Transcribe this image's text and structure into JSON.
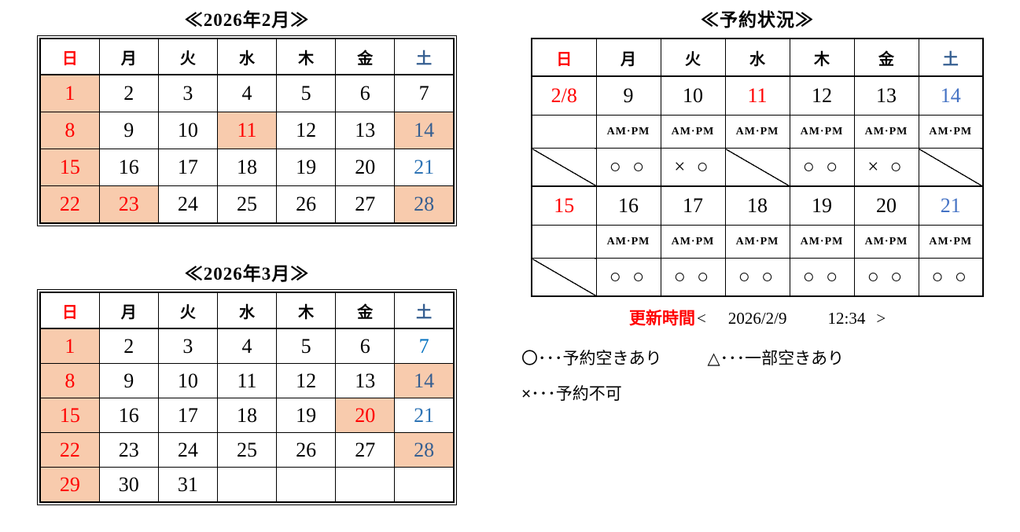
{
  "colors": {
    "red": "#ff0000",
    "blue_dark": "#365f91",
    "blue_medium": "#2e74b5",
    "blue_bright": "#0070c0",
    "blue_royal": "#4472c4",
    "highlight": "#f8cbad"
  },
  "calendars": [
    {
      "title": "≪2026年2月≫",
      "day_headers": [
        {
          "label": "日",
          "color": "red"
        },
        {
          "label": "月",
          "color": "black"
        },
        {
          "label": "火",
          "color": "black"
        },
        {
          "label": "水",
          "color": "black"
        },
        {
          "label": "木",
          "color": "black"
        },
        {
          "label": "金",
          "color": "black"
        },
        {
          "label": "土",
          "color": "blue-dark"
        }
      ],
      "weeks": [
        [
          {
            "text": "1",
            "color": "red",
            "highlight": true
          },
          {
            "text": "2"
          },
          {
            "text": "3"
          },
          {
            "text": "4"
          },
          {
            "text": "5"
          },
          {
            "text": "6"
          },
          {
            "text": "7"
          }
        ],
        [
          {
            "text": "8",
            "color": "red",
            "highlight": true
          },
          {
            "text": "9"
          },
          {
            "text": "10"
          },
          {
            "text": "11",
            "color": "red",
            "highlight": true
          },
          {
            "text": "12"
          },
          {
            "text": "13"
          },
          {
            "text": "14",
            "color": "blue-dark",
            "highlight": true
          }
        ],
        [
          {
            "text": "15",
            "color": "red",
            "highlight": true
          },
          {
            "text": "16"
          },
          {
            "text": "17"
          },
          {
            "text": "18"
          },
          {
            "text": "19"
          },
          {
            "text": "20"
          },
          {
            "text": "21",
            "color": "blue-medium"
          }
        ],
        [
          {
            "text": "22",
            "color": "red",
            "highlight": true
          },
          {
            "text": "23",
            "color": "red",
            "highlight": true
          },
          {
            "text": "24"
          },
          {
            "text": "25"
          },
          {
            "text": "26"
          },
          {
            "text": "27"
          },
          {
            "text": "28",
            "color": "blue-dark",
            "highlight": true
          }
        ]
      ]
    },
    {
      "title": "≪2026年3月≫",
      "day_headers": [
        {
          "label": "日",
          "color": "red"
        },
        {
          "label": "月",
          "color": "black"
        },
        {
          "label": "火",
          "color": "black"
        },
        {
          "label": "水",
          "color": "black"
        },
        {
          "label": "木",
          "color": "black"
        },
        {
          "label": "金",
          "color": "black"
        },
        {
          "label": "土",
          "color": "blue-dark"
        }
      ],
      "weeks": [
        [
          {
            "text": "1",
            "color": "red",
            "highlight": true
          },
          {
            "text": "2"
          },
          {
            "text": "3"
          },
          {
            "text": "4"
          },
          {
            "text": "5"
          },
          {
            "text": "6"
          },
          {
            "text": "7",
            "color": "blue-bright"
          }
        ],
        [
          {
            "text": "8",
            "color": "red",
            "highlight": true
          },
          {
            "text": "9"
          },
          {
            "text": "10"
          },
          {
            "text": "11"
          },
          {
            "text": "12"
          },
          {
            "text": "13"
          },
          {
            "text": "14",
            "color": "blue-dark",
            "highlight": true
          }
        ],
        [
          {
            "text": "15",
            "color": "red",
            "highlight": true
          },
          {
            "text": "16"
          },
          {
            "text": "17"
          },
          {
            "text": "18"
          },
          {
            "text": "19"
          },
          {
            "text": "20",
            "color": "red",
            "highlight": true
          },
          {
            "text": "21",
            "color": "blue-medium"
          }
        ],
        [
          {
            "text": "22",
            "color": "red",
            "highlight": true
          },
          {
            "text": "23"
          },
          {
            "text": "24"
          },
          {
            "text": "25"
          },
          {
            "text": "26"
          },
          {
            "text": "27"
          },
          {
            "text": "28",
            "color": "blue-dark",
            "highlight": true
          }
        ],
        [
          {
            "text": "29",
            "color": "red",
            "highlight": true
          },
          {
            "text": "30"
          },
          {
            "text": "31"
          },
          {
            "text": ""
          },
          {
            "text": ""
          },
          {
            "text": ""
          },
          {
            "text": ""
          }
        ]
      ]
    }
  ],
  "status_board": {
    "title": "≪予約状況≫",
    "day_headers": [
      {
        "label": "日",
        "color": "red"
      },
      {
        "label": "月",
        "color": "black"
      },
      {
        "label": "火",
        "color": "black"
      },
      {
        "label": "水",
        "color": "black"
      },
      {
        "label": "木",
        "color": "black"
      },
      {
        "label": "金",
        "color": "black"
      },
      {
        "label": "土",
        "color": "blue-dark"
      }
    ],
    "ampm_label": "AM·PM",
    "weeks": [
      {
        "dates": [
          {
            "text": "2/8",
            "color": "red"
          },
          {
            "text": "9"
          },
          {
            "text": "10"
          },
          {
            "text": "11",
            "color": "red"
          },
          {
            "text": "12"
          },
          {
            "text": "13"
          },
          {
            "text": "14",
            "color": "blue-royal"
          }
        ],
        "availability": [
          {
            "slash": true
          },
          {
            "text": "○ ○"
          },
          {
            "text": "× ○"
          },
          {
            "slash": true
          },
          {
            "text": "○ ○"
          },
          {
            "text": "× ○"
          },
          {
            "slash": true
          }
        ]
      },
      {
        "dates": [
          {
            "text": "15",
            "color": "red"
          },
          {
            "text": "16"
          },
          {
            "text": "17"
          },
          {
            "text": "18"
          },
          {
            "text": "19"
          },
          {
            "text": "20"
          },
          {
            "text": "21",
            "color": "blue-royal"
          }
        ],
        "availability": [
          {
            "slash": true
          },
          {
            "text": "○ ○"
          },
          {
            "text": "○ ○"
          },
          {
            "text": "○ ○"
          },
          {
            "text": "○ ○"
          },
          {
            "text": "○ ○"
          },
          {
            "text": "○ ○"
          }
        ]
      }
    ],
    "update": {
      "label": "更新時間",
      "open_bracket": "<",
      "date": "2026/2/9",
      "time": "12:34",
      "close_bracket": ">"
    }
  },
  "legend": {
    "items": [
      "〇･･･予約空きあり",
      "△･･･一部空きあり",
      "×･･･予約不可"
    ]
  }
}
